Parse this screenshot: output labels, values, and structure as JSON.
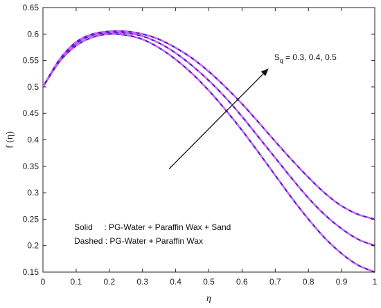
{
  "chart_data": {
    "type": "line",
    "xlabel": "η",
    "ylabel": "f (η)",
    "xlim": [
      0,
      1
    ],
    "ylim": [
      0.15,
      0.65
    ],
    "xticks": [
      "0",
      "0.1",
      "0.2",
      "0.3",
      "0.4",
      "0.5",
      "0.6",
      "0.7",
      "0.8",
      "0.9",
      "1"
    ],
    "yticks": [
      "0.15",
      "0.2",
      "0.25",
      "0.3",
      "0.35",
      "0.4",
      "0.45",
      "0.5",
      "0.55",
      "0.6",
      "0.65"
    ],
    "grid": false,
    "annotation": {
      "label_main": "S",
      "label_sub": "q",
      "label_rest": " = 0.3, 0.4, 0.5",
      "arrow_from": [
        0.38,
        0.345
      ],
      "arrow_to": [
        0.68,
        0.535
      ]
    },
    "legend_text": {
      "solid": "Solid     : PG-Water + Paraffin Wax + Sand",
      "dashed": "Dashed : PG-Water + Paraffin Wax"
    },
    "solid_color": "#4b2bc4",
    "dashed_color": "#e05bff",
    "x": [
      0,
      0.05,
      0.1,
      0.15,
      0.2,
      0.25,
      0.3,
      0.35,
      0.4,
      0.45,
      0.5,
      0.55,
      0.6,
      0.65,
      0.7,
      0.75,
      0.8,
      0.85,
      0.9,
      0.95,
      1.0
    ],
    "series": [
      {
        "values": [
          0.5,
          0.548,
          0.578,
          0.594,
          0.6,
          0.598,
          0.59,
          0.574,
          0.552,
          0.525,
          0.493,
          0.457,
          0.418,
          0.376,
          0.333,
          0.29,
          0.25,
          0.214,
          0.185,
          0.163,
          0.15
        ]
      },
      {
        "values": [
          0.5,
          0.55,
          0.582,
          0.598,
          0.603,
          0.602,
          0.596,
          0.583,
          0.564,
          0.54,
          0.512,
          0.48,
          0.444,
          0.405,
          0.366,
          0.327,
          0.29,
          0.258,
          0.232,
          0.212,
          0.2
        ]
      },
      {
        "values": [
          0.5,
          0.552,
          0.585,
          0.6,
          0.605,
          0.605,
          0.6,
          0.59,
          0.574,
          0.554,
          0.529,
          0.5,
          0.468,
          0.433,
          0.397,
          0.362,
          0.329,
          0.299,
          0.275,
          0.259,
          0.25
        ]
      }
    ]
  }
}
